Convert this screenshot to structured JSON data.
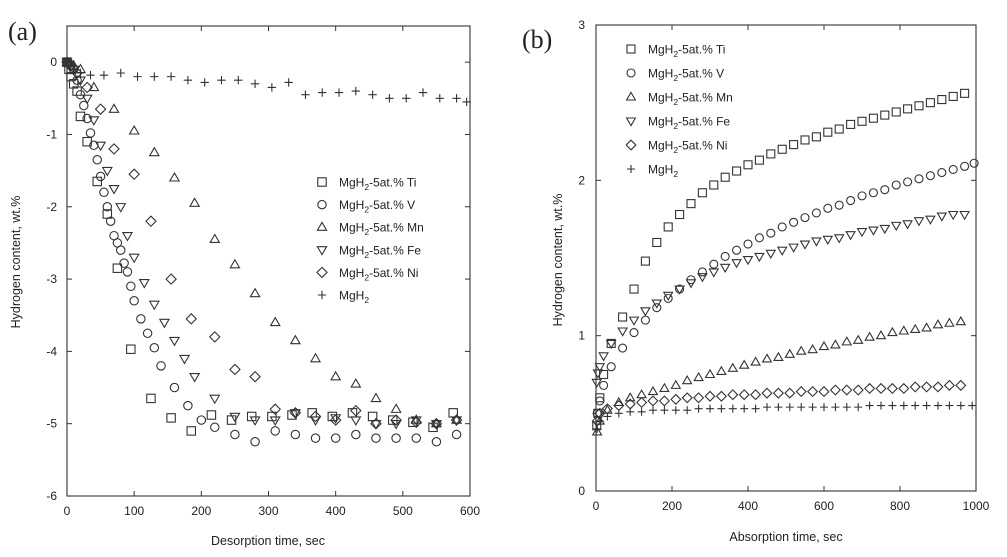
{
  "chart_data": [
    {
      "type": "scatter",
      "panel_label": "(a)",
      "xlabel": "Desorption time, sec",
      "ylabel": "Hydrogen content, wt.%",
      "xlim": [
        0,
        600
      ],
      "ylim": [
        -6,
        0.5
      ],
      "xticks": [
        0,
        100,
        200,
        300,
        400,
        500,
        600
      ],
      "yticks": [
        0,
        -1,
        -2,
        -3,
        -4,
        -5,
        -6
      ],
      "legend_position": "center-right",
      "series": [
        {
          "name": "MgH2-5at.% Ti",
          "name_parts": [
            "MgH",
            "2",
            "-5at.% Ti"
          ],
          "marker": "square",
          "x": [
            0,
            3,
            6,
            10,
            15,
            20,
            30,
            45,
            60,
            75,
            95,
            125,
            155,
            185,
            215,
            245,
            275,
            305,
            335,
            365,
            395,
            425,
            455,
            485,
            515,
            545,
            575
          ],
          "y": [
            0,
            -0.1,
            -0.2,
            -0.3,
            -0.4,
            -0.75,
            -1.1,
            -1.65,
            -2.1,
            -2.85,
            -3.97,
            -4.65,
            -4.92,
            -5.1,
            -4.88,
            -4.95,
            -4.9,
            -4.9,
            -4.88,
            -4.85,
            -4.9,
            -4.85,
            -4.9,
            -4.95,
            -4.98,
            -5.05,
            -4.85
          ]
        },
        {
          "name": "MgH2-5at.% V",
          "name_parts": [
            "MgH",
            "2",
            "-5at.% V"
          ],
          "marker": "circle",
          "x": [
            0,
            3,
            6,
            10,
            15,
            20,
            25,
            30,
            35,
            40,
            45,
            50,
            55,
            60,
            65,
            70,
            75,
            80,
            85,
            90,
            95,
            100,
            110,
            120,
            130,
            140,
            160,
            180,
            200,
            220,
            250,
            280,
            310,
            340,
            370,
            400,
            430,
            460,
            490,
            520,
            550,
            580
          ],
          "y": [
            0,
            -0.02,
            -0.05,
            -0.1,
            -0.25,
            -0.45,
            -0.6,
            -0.78,
            -0.98,
            -1.15,
            -1.35,
            -1.58,
            -1.8,
            -2.0,
            -2.2,
            -2.4,
            -2.5,
            -2.6,
            -2.78,
            -2.9,
            -3.1,
            -3.3,
            -3.55,
            -3.75,
            -3.95,
            -4.2,
            -4.5,
            -4.75,
            -4.95,
            -5.05,
            -5.15,
            -5.25,
            -5.1,
            -5.15,
            -5.2,
            -5.2,
            -5.15,
            -5.2,
            -5.2,
            -5.2,
            -5.25,
            -5.15
          ]
        },
        {
          "name": "MgH2-5at.% Mn",
          "name_parts": [
            "MgH",
            "2",
            "-5at.% Mn"
          ],
          "marker": "triangle-up",
          "x": [
            0,
            3,
            10,
            20,
            40,
            70,
            100,
            130,
            160,
            190,
            220,
            250,
            280,
            310,
            340,
            370,
            400,
            430,
            460,
            490,
            520,
            550,
            580
          ],
          "y": [
            0,
            -0.02,
            -0.05,
            -0.1,
            -0.35,
            -0.65,
            -0.95,
            -1.25,
            -1.6,
            -1.95,
            -2.45,
            -2.8,
            -3.2,
            -3.6,
            -3.85,
            -4.1,
            -4.35,
            -4.45,
            -4.65,
            -4.8,
            -4.95,
            -5.0,
            -4.95
          ]
        },
        {
          "name": "MgH2-5at.% Fe",
          "name_parts": [
            "MgH",
            "2",
            "-5at.% Fe"
          ],
          "marker": "triangle-down",
          "x": [
            0,
            3,
            10,
            20,
            30,
            40,
            50,
            60,
            70,
            80,
            90,
            100,
            115,
            130,
            145,
            160,
            175,
            190,
            220,
            250,
            280,
            310,
            340,
            370,
            400,
            430,
            460,
            490,
            520,
            550,
            580
          ],
          "y": [
            0,
            -0.03,
            -0.1,
            -0.25,
            -0.5,
            -0.8,
            -1.15,
            -1.5,
            -1.75,
            -2.0,
            -2.4,
            -2.7,
            -3.05,
            -3.35,
            -3.6,
            -3.85,
            -4.1,
            -4.35,
            -4.65,
            -4.9,
            -4.95,
            -4.95,
            -4.85,
            -4.95,
            -4.92,
            -4.95,
            -5.0,
            -5.0,
            -4.95,
            -5.0,
            -4.95
          ]
        },
        {
          "name": "MgH2-5at.% Ni",
          "name_parts": [
            "MgH",
            "2",
            "-5at.% Ni"
          ],
          "marker": "diamond",
          "x": [
            0,
            5,
            15,
            30,
            50,
            70,
            100,
            125,
            155,
            185,
            220,
            250,
            280,
            310,
            340,
            370,
            400,
            430,
            460,
            490,
            520,
            550,
            580
          ],
          "y": [
            0,
            -0.05,
            -0.15,
            -0.35,
            -0.65,
            -1.2,
            -1.55,
            -2.2,
            -3.0,
            -3.55,
            -3.8,
            -4.25,
            -4.35,
            -4.8,
            -4.85,
            -4.9,
            -4.95,
            -4.82,
            -5.0,
            -4.95,
            -4.98,
            -5.0,
            -4.95
          ]
        },
        {
          "name": "MgH2",
          "name_parts": [
            "MgH",
            "2",
            ""
          ],
          "marker": "plus",
          "x": [
            0,
            10,
            20,
            35,
            55,
            80,
            105,
            130,
            155,
            180,
            205,
            230,
            255,
            280,
            305,
            330,
            355,
            380,
            405,
            430,
            455,
            480,
            505,
            530,
            555,
            580,
            595
          ],
          "y": [
            0,
            -0.1,
            -0.15,
            -0.18,
            -0.18,
            -0.15,
            -0.2,
            -0.2,
            -0.2,
            -0.25,
            -0.28,
            -0.25,
            -0.25,
            -0.3,
            -0.35,
            -0.28,
            -0.45,
            -0.42,
            -0.42,
            -0.4,
            -0.45,
            -0.5,
            -0.5,
            -0.42,
            -0.5,
            -0.5,
            -0.55
          ]
        }
      ]
    },
    {
      "type": "scatter",
      "panel_label": "(b)",
      "xlabel": "Absorption time, sec",
      "ylabel": "Hydrogen content, wt.%",
      "xlim": [
        0,
        1000
      ],
      "ylim": [
        0,
        3
      ],
      "xticks": [
        0,
        200,
        400,
        600,
        800,
        1000
      ],
      "yticks": [
        0,
        1,
        2,
        3
      ],
      "legend_position": "top-left",
      "series": [
        {
          "name": "MgH2-5at.% Ti",
          "name_parts": [
            "MgH",
            "2",
            "-5at.% Ti"
          ],
          "marker": "square",
          "x": [
            2,
            5,
            10,
            20,
            40,
            70,
            100,
            130,
            160,
            190,
            220,
            250,
            280,
            310,
            340,
            370,
            400,
            430,
            460,
            490,
            520,
            550,
            580,
            610,
            640,
            670,
            700,
            730,
            760,
            790,
            820,
            850,
            880,
            910,
            940,
            970
          ],
          "y": [
            0.42,
            0.5,
            0.6,
            0.75,
            0.95,
            1.12,
            1.3,
            1.48,
            1.6,
            1.7,
            1.78,
            1.85,
            1.92,
            1.97,
            2.02,
            2.06,
            2.1,
            2.13,
            2.17,
            2.2,
            2.23,
            2.26,
            2.28,
            2.31,
            2.33,
            2.36,
            2.38,
            2.4,
            2.42,
            2.44,
            2.46,
            2.48,
            2.5,
            2.52,
            2.54,
            2.56
          ]
        },
        {
          "name": "MgH2-5at.% V",
          "name_parts": [
            "MgH",
            "2",
            "-5at.% V"
          ],
          "marker": "circle",
          "x": [
            3,
            10,
            20,
            40,
            70,
            100,
            130,
            160,
            190,
            220,
            250,
            280,
            310,
            340,
            370,
            400,
            430,
            460,
            490,
            520,
            550,
            580,
            610,
            640,
            670,
            700,
            730,
            760,
            790,
            820,
            850,
            880,
            910,
            940,
            970,
            995
          ],
          "y": [
            0.5,
            0.58,
            0.68,
            0.8,
            0.92,
            1.02,
            1.1,
            1.18,
            1.24,
            1.3,
            1.36,
            1.41,
            1.46,
            1.51,
            1.55,
            1.59,
            1.63,
            1.66,
            1.7,
            1.73,
            1.76,
            1.79,
            1.82,
            1.84,
            1.87,
            1.9,
            1.92,
            1.94,
            1.97,
            1.99,
            2.01,
            2.03,
            2.05,
            2.07,
            2.09,
            2.11
          ]
        },
        {
          "name": "MgH2-5at.% Mn",
          "name_parts": [
            "MgH",
            "2",
            "-5at.% Mn"
          ],
          "marker": "triangle-up",
          "x": [
            3,
            10,
            30,
            60,
            90,
            120,
            150,
            180,
            210,
            240,
            270,
            300,
            330,
            360,
            390,
            420,
            450,
            480,
            510,
            540,
            570,
            600,
            630,
            660,
            690,
            720,
            750,
            780,
            810,
            840,
            870,
            900,
            930,
            960
          ],
          "y": [
            0.38,
            0.45,
            0.52,
            0.57,
            0.6,
            0.62,
            0.64,
            0.66,
            0.68,
            0.71,
            0.73,
            0.75,
            0.77,
            0.79,
            0.81,
            0.83,
            0.85,
            0.86,
            0.88,
            0.9,
            0.91,
            0.93,
            0.94,
            0.96,
            0.97,
            0.99,
            1.0,
            1.02,
            1.03,
            1.04,
            1.05,
            1.07,
            1.08,
            1.09
          ]
        },
        {
          "name": "MgH2-5at.% Fe",
          "name_parts": [
            "MgH",
            "2",
            "-5at.% Fe"
          ],
          "marker": "triangle-down",
          "x": [
            2,
            5,
            10,
            20,
            40,
            70,
            100,
            130,
            160,
            190,
            220,
            250,
            280,
            310,
            340,
            370,
            400,
            430,
            460,
            490,
            520,
            550,
            580,
            610,
            640,
            670,
            700,
            730,
            760,
            790,
            820,
            850,
            880,
            910,
            940,
            970
          ],
          "y": [
            0.7,
            0.76,
            0.8,
            0.87,
            0.95,
            1.03,
            1.1,
            1.16,
            1.21,
            1.26,
            1.3,
            1.34,
            1.38,
            1.41,
            1.44,
            1.47,
            1.49,
            1.51,
            1.53,
            1.55,
            1.57,
            1.59,
            1.61,
            1.62,
            1.63,
            1.65,
            1.67,
            1.68,
            1.69,
            1.71,
            1.72,
            1.74,
            1.75,
            1.77,
            1.78,
            1.78
          ]
        },
        {
          "name": "MgH2-5at.% Ni",
          "name_parts": [
            "MgH",
            "2",
            "-5at.% Ni"
          ],
          "marker": "diamond",
          "x": [
            3,
            10,
            30,
            60,
            90,
            120,
            150,
            180,
            210,
            240,
            270,
            300,
            330,
            360,
            390,
            420,
            450,
            480,
            510,
            540,
            570,
            600,
            630,
            660,
            690,
            720,
            750,
            780,
            810,
            840,
            870,
            900,
            930,
            960
          ],
          "y": [
            0.45,
            0.5,
            0.53,
            0.55,
            0.56,
            0.57,
            0.58,
            0.58,
            0.59,
            0.6,
            0.6,
            0.61,
            0.61,
            0.62,
            0.62,
            0.62,
            0.63,
            0.63,
            0.63,
            0.64,
            0.64,
            0.64,
            0.65,
            0.65,
            0.65,
            0.66,
            0.66,
            0.66,
            0.66,
            0.67,
            0.67,
            0.67,
            0.68,
            0.68
          ]
        },
        {
          "name": "MgH2",
          "name_parts": [
            "MgH",
            "2",
            ""
          ],
          "marker": "plus",
          "x": [
            3,
            10,
            30,
            60,
            90,
            120,
            150,
            180,
            210,
            240,
            270,
            300,
            330,
            360,
            390,
            420,
            450,
            480,
            510,
            540,
            570,
            600,
            630,
            660,
            690,
            720,
            750,
            780,
            810,
            840,
            870,
            900,
            930,
            960,
            990
          ],
          "y": [
            0.4,
            0.45,
            0.48,
            0.5,
            0.51,
            0.51,
            0.52,
            0.52,
            0.52,
            0.52,
            0.53,
            0.53,
            0.53,
            0.53,
            0.53,
            0.53,
            0.54,
            0.54,
            0.54,
            0.54,
            0.54,
            0.54,
            0.54,
            0.54,
            0.54,
            0.55,
            0.55,
            0.55,
            0.55,
            0.55,
            0.55,
            0.55,
            0.55,
            0.55,
            0.55
          ]
        }
      ]
    }
  ]
}
